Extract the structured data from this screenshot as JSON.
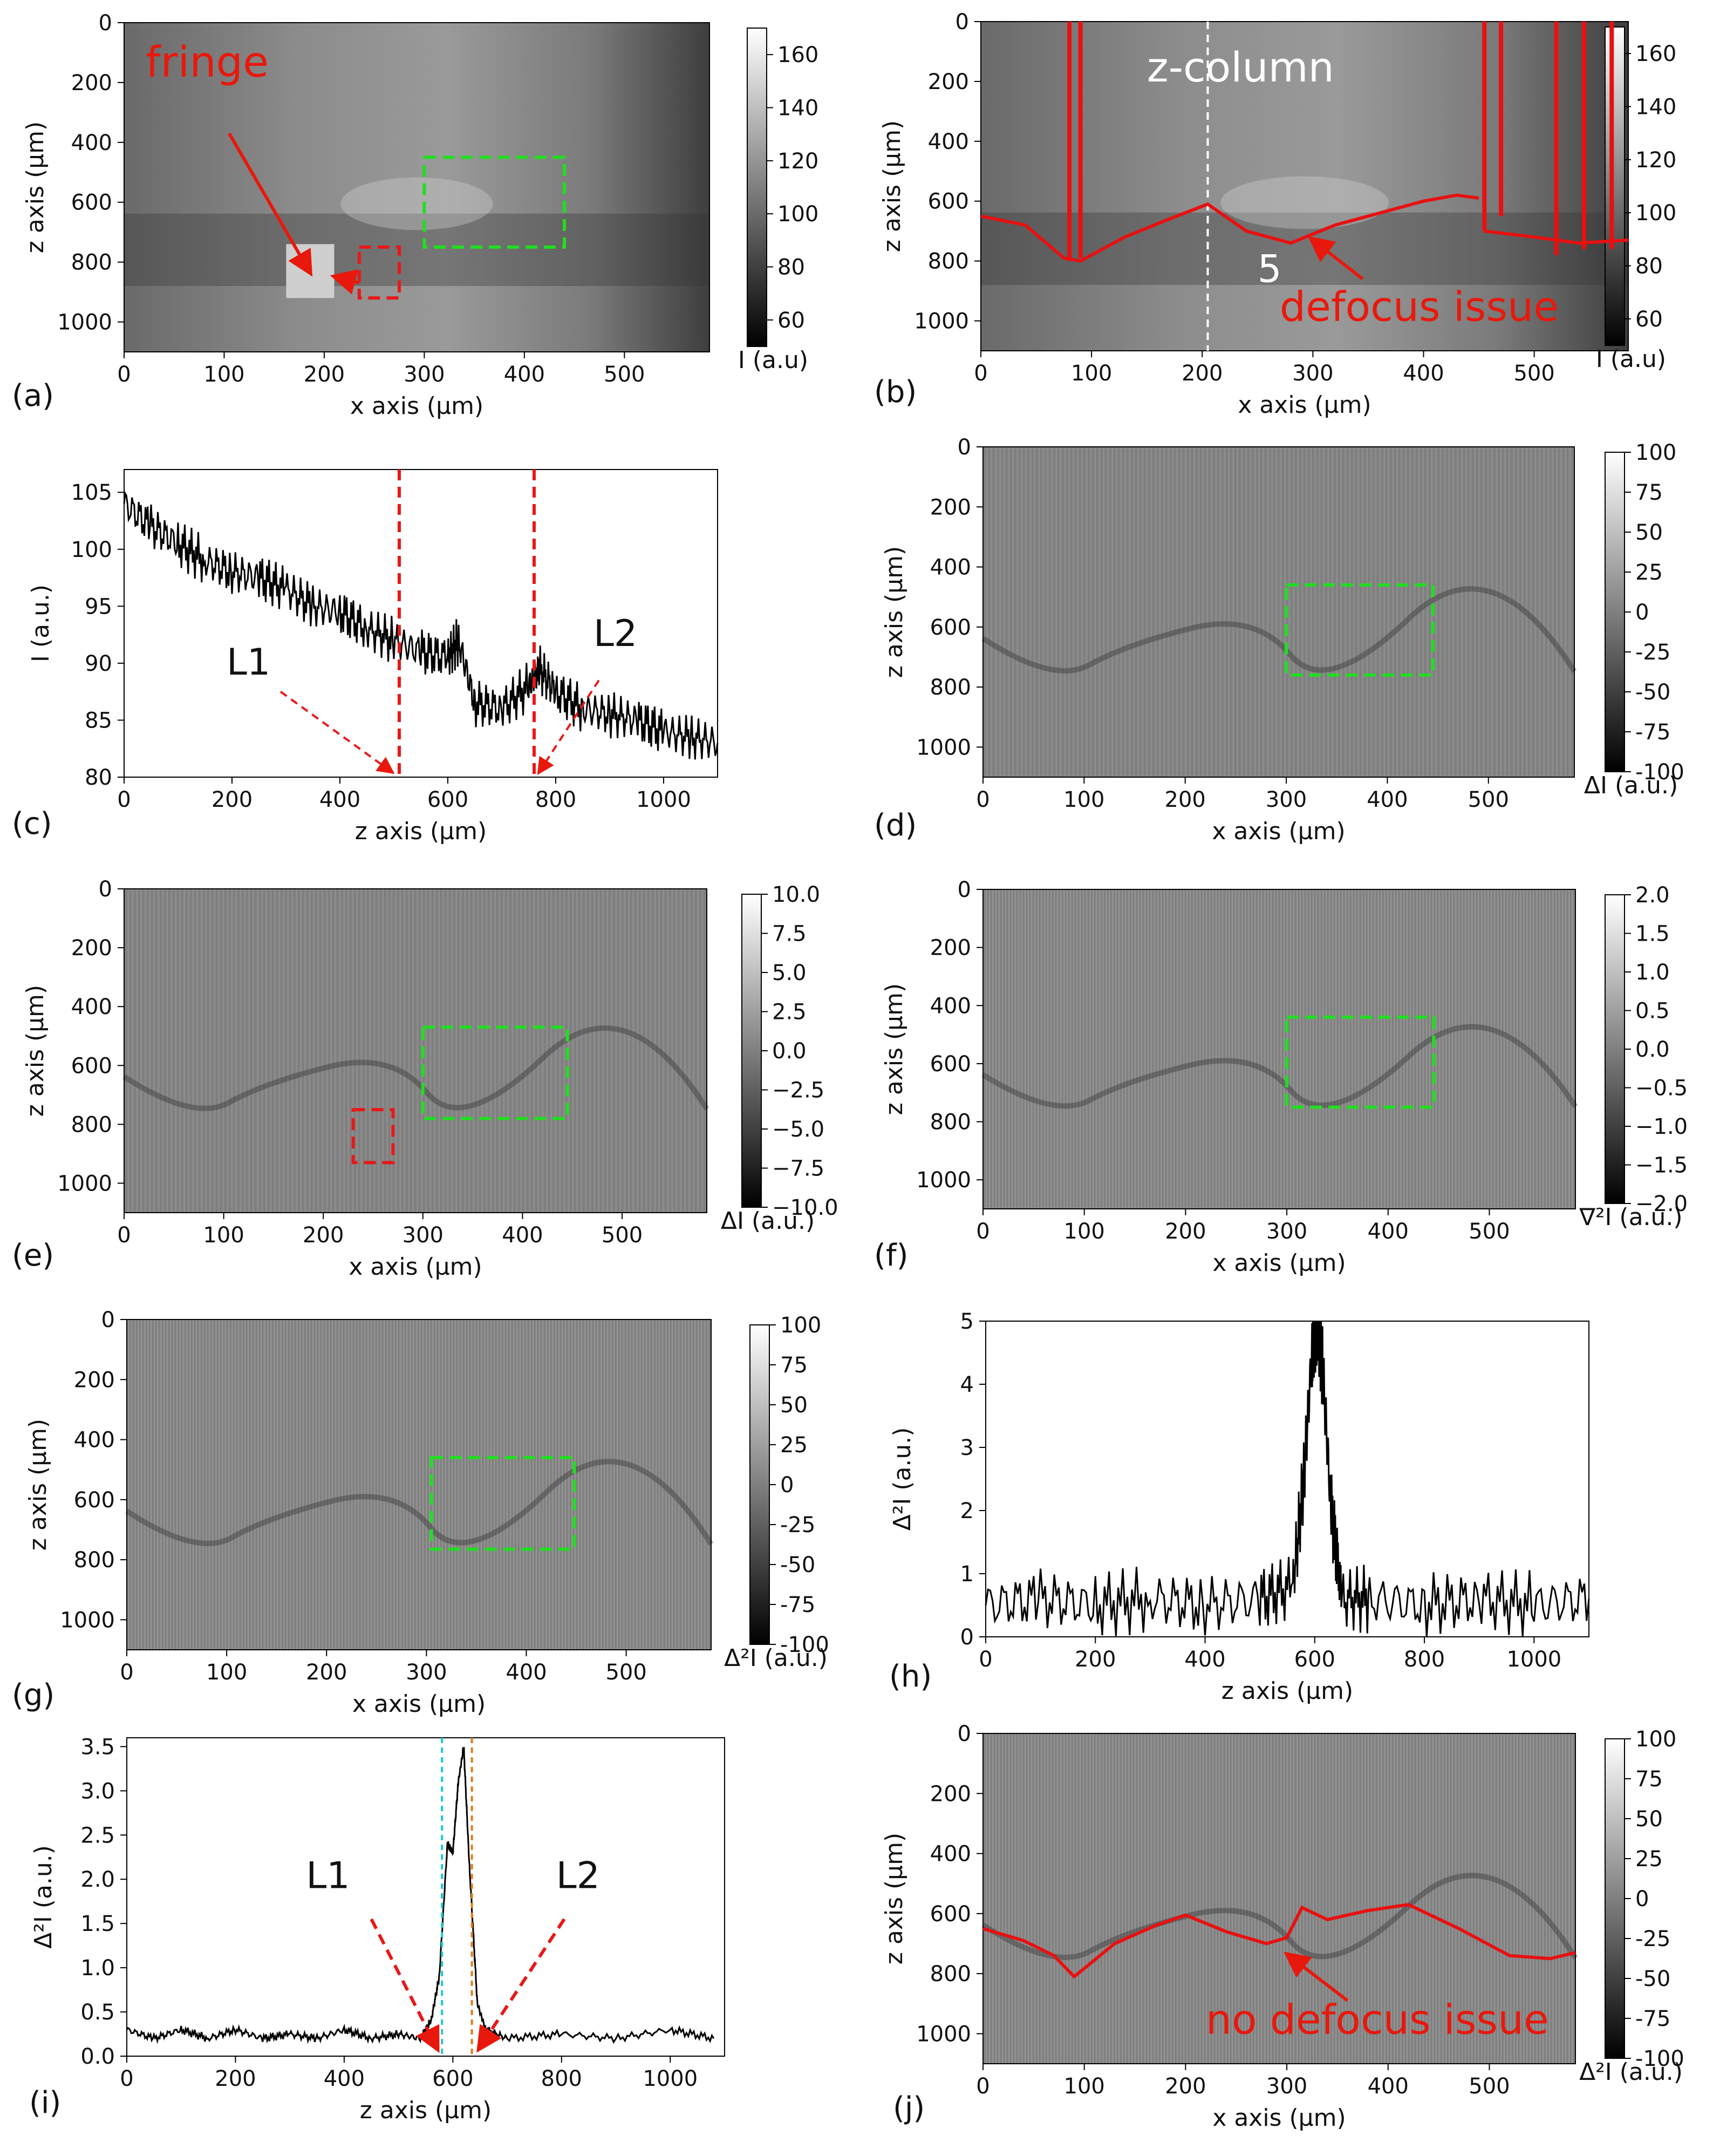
{
  "figure": {
    "panels": [
      {
        "id": "a",
        "label": "(a)",
        "type": "heatmap",
        "xlabel": "x axis (μm)",
        "ylabel": "z axis (μm)",
        "xticks": [
          0,
          100,
          200,
          300,
          400,
          500
        ],
        "yticks": [
          0,
          200,
          400,
          600,
          800,
          1000
        ],
        "colorbar": {
          "label": "I (a.u)",
          "ticks": [
            60,
            80,
            100,
            120,
            140,
            160
          ],
          "min": 50,
          "max": 170
        },
        "annotations": [
          {
            "text": "fringe",
            "color": "#e8180c"
          }
        ],
        "boxes": [
          {
            "color": "#22dd22",
            "x": [
              300,
              440
            ],
            "z": [
              450,
              750
            ]
          },
          {
            "color": "#e81818",
            "x": [
              235,
              275
            ],
            "z": [
              750,
              920
            ]
          }
        ]
      },
      {
        "id": "b",
        "label": "(b)",
        "type": "heatmap",
        "xlabel": "x axis (μm)",
        "ylabel": "z axis (μm)",
        "xticks": [
          0,
          100,
          200,
          300,
          400,
          500
        ],
        "yticks": [
          0,
          200,
          400,
          600,
          800,
          1000
        ],
        "colorbar": {
          "label": "I (a.u)",
          "ticks": [
            60,
            80,
            100,
            120,
            140,
            160
          ],
          "min": 50,
          "max": 170
        },
        "annotations": [
          {
            "text": "z-column",
            "color": "#ffffff"
          },
          {
            "text": "5",
            "color": "#ffffff"
          },
          {
            "text": "defocus issue",
            "color": "#e8180c"
          }
        ],
        "vline_x": 205
      },
      {
        "id": "c",
        "label": "(c)",
        "type": "line",
        "xlabel": "z axis (μm)",
        "ylabel": "I (a.u.)",
        "xticks": [
          0,
          200,
          400,
          600,
          800,
          1000
        ],
        "yticks": [
          80,
          85,
          90,
          95,
          100,
          105
        ],
        "xlim": [
          0,
          1100
        ],
        "ylim": [
          80,
          107
        ],
        "vlines": [
          510,
          760
        ],
        "annotations": [
          {
            "text": "L1"
          },
          {
            "text": "L2"
          }
        ],
        "chart_data": {
          "type": "line",
          "x": [
            0,
            50,
            100,
            150,
            200,
            250,
            300,
            350,
            400,
            450,
            500,
            550,
            600,
            620,
            650,
            700,
            750,
            770,
            800,
            850,
            900,
            950,
            1000,
            1050,
            1100
          ],
          "y": [
            104,
            102,
            100.5,
            99,
            98,
            97.5,
            96.5,
            95,
            94.5,
            93,
            92,
            91,
            90.5,
            92,
            86.5,
            86,
            88,
            89.5,
            87.5,
            86,
            85.5,
            85,
            84,
            83.5,
            83
          ]
        }
      },
      {
        "id": "d",
        "label": "(d)",
        "type": "heatmap",
        "xlabel": "x axis (μm)",
        "ylabel": "z axis (μm)",
        "xticks": [
          0,
          100,
          200,
          300,
          400,
          500
        ],
        "yticks": [
          0,
          200,
          400,
          600,
          800,
          1000
        ],
        "colorbar": {
          "label": "ΔI (a.u.)",
          "ticks": [
            100,
            75,
            50,
            25,
            0,
            -25,
            -50,
            -75,
            -100
          ],
          "min": -100,
          "max": 100
        }
      },
      {
        "id": "e",
        "label": "(e)",
        "type": "heatmap",
        "xlabel": "x axis (μm)",
        "ylabel": "z axis (μm)",
        "xticks": [
          0,
          100,
          200,
          300,
          400,
          500
        ],
        "yticks": [
          0,
          200,
          400,
          600,
          800,
          1000
        ],
        "colorbar": {
          "label": "ΔI (a.u.)",
          "ticks": [
            "10.0",
            "7.5",
            "5.0",
            "2.5",
            "0.0",
            "−2.5",
            "−5.0",
            "−7.5",
            "−10.0"
          ],
          "min": -10,
          "max": 10
        }
      },
      {
        "id": "f",
        "label": "(f)",
        "type": "heatmap",
        "xlabel": "x axis (μm)",
        "ylabel": "z axis (μm)",
        "xticks": [
          0,
          100,
          200,
          300,
          400,
          500
        ],
        "yticks": [
          0,
          200,
          400,
          600,
          800,
          1000
        ],
        "colorbar": {
          "label": "∇²I (a.u.)",
          "ticks": [
            "2.0",
            "1.5",
            "1.0",
            "0.5",
            "0.0",
            "−0.5",
            "−1.0",
            "−1.5",
            "−2.0"
          ],
          "min": -2,
          "max": 2
        }
      },
      {
        "id": "g",
        "label": "(g)",
        "type": "heatmap",
        "xlabel": "x axis (μm)",
        "ylabel": "z axis (μm)",
        "xticks": [
          0,
          100,
          200,
          300,
          400,
          500
        ],
        "yticks": [
          0,
          200,
          400,
          600,
          800,
          1000
        ],
        "colorbar": {
          "label": "Δ²I (a.u.)",
          "ticks": [
            100,
            75,
            50,
            25,
            0,
            -25,
            -50,
            -75,
            -100
          ],
          "min": -100,
          "max": 100
        }
      },
      {
        "id": "h",
        "label": "(h)",
        "type": "line",
        "xlabel": "z axis (μm)",
        "ylabel": "Δ²I (a.u.)",
        "xticks": [
          0,
          200,
          400,
          600,
          800,
          1000
        ],
        "yticks": [
          0,
          1,
          2,
          3,
          4,
          5
        ],
        "xlim": [
          0,
          1100
        ],
        "ylim": [
          0,
          5
        ],
        "chart_data": {
          "type": "line",
          "x": [
            0,
            100,
            200,
            300,
            400,
            500,
            560,
            580,
            595,
            605,
            615,
            630,
            650,
            700,
            800,
            900,
            1000,
            1100
          ],
          "y": [
            0.5,
            0.6,
            0.5,
            0.6,
            0.5,
            0.6,
            0.8,
            2.5,
            4.5,
            4.9,
            4.2,
            2.0,
            0.6,
            0.6,
            0.5,
            0.6,
            0.5,
            0.6
          ]
        }
      },
      {
        "id": "i",
        "label": "(i)",
        "type": "line",
        "xlabel": "z axis (μm)",
        "ylabel": "Δ²I (a.u.)",
        "xticks": [
          0,
          200,
          400,
          600,
          800,
          1000
        ],
        "yticks": [
          "0.0",
          "0.5",
          "1.0",
          "1.5",
          "2.0",
          "2.5",
          "3.0",
          "3.5"
        ],
        "xlim": [
          0,
          1100
        ],
        "ylim": [
          0,
          3.6
        ],
        "vlines_colored": [
          {
            "x": 580,
            "color": "#1fc8c8"
          },
          {
            "x": 635,
            "color": "#e07b1a"
          }
        ],
        "annotations": [
          {
            "text": "L1"
          },
          {
            "text": "L2"
          }
        ],
        "chart_data": {
          "type": "line",
          "x": [
            0,
            50,
            100,
            150,
            200,
            250,
            300,
            350,
            400,
            450,
            500,
            540,
            560,
            575,
            590,
            600,
            610,
            620,
            630,
            645,
            660,
            700,
            800,
            900,
            1000,
            1080
          ],
          "y": [
            0.3,
            0.2,
            0.3,
            0.2,
            0.3,
            0.2,
            0.25,
            0.2,
            0.3,
            0.2,
            0.25,
            0.2,
            0.4,
            0.9,
            2.4,
            2.3,
            3.1,
            3.5,
            2.2,
            0.6,
            0.3,
            0.2,
            0.25,
            0.2,
            0.3,
            0.2
          ]
        }
      },
      {
        "id": "j",
        "label": "(j)",
        "type": "heatmap",
        "xlabel": "x axis (μm)",
        "ylabel": "z axis (μm)",
        "xticks": [
          0,
          100,
          200,
          300,
          400,
          500
        ],
        "yticks": [
          0,
          200,
          400,
          600,
          800,
          1000
        ],
        "colorbar": {
          "label": "Δ²I (a.u.)",
          "ticks": [
            100,
            75,
            50,
            25,
            0,
            -25,
            -50,
            -75,
            -100
          ],
          "min": -100,
          "max": 100
        },
        "annotations": [
          {
            "text": "no defocus issue",
            "color": "#e8180c"
          }
        ]
      }
    ]
  },
  "chart_data": [
    {
      "type": "line",
      "panel": "c",
      "x": [
        0,
        50,
        100,
        150,
        200,
        250,
        300,
        350,
        400,
        450,
        500,
        550,
        600,
        620,
        650,
        700,
        750,
        770,
        800,
        850,
        900,
        950,
        1000,
        1050,
        1100
      ],
      "y": [
        104,
        102,
        100.5,
        99,
        98,
        97.5,
        96.5,
        95,
        94.5,
        93,
        92,
        91,
        90.5,
        92,
        86.5,
        86,
        88,
        89.5,
        87.5,
        86,
        85.5,
        85,
        84,
        83.5,
        83
      ],
      "xlabel": "z axis (μm)",
      "ylabel": "I (a.u.)",
      "ylim": [
        80,
        107
      ]
    },
    {
      "type": "line",
      "panel": "h",
      "x": [
        0,
        100,
        200,
        300,
        400,
        500,
        560,
        580,
        595,
        605,
        615,
        630,
        650,
        700,
        800,
        900,
        1000,
        1100
      ],
      "y": [
        0.5,
        0.6,
        0.5,
        0.6,
        0.5,
        0.6,
        0.8,
        2.5,
        4.5,
        4.9,
        4.2,
        2.0,
        0.6,
        0.6,
        0.5,
        0.6,
        0.5,
        0.6
      ],
      "xlabel": "z axis (μm)",
      "ylabel": "Δ²I (a.u.)",
      "ylim": [
        0,
        5
      ]
    },
    {
      "type": "line",
      "panel": "i",
      "x": [
        0,
        50,
        100,
        150,
        200,
        250,
        300,
        350,
        400,
        450,
        500,
        540,
        560,
        575,
        590,
        600,
        610,
        620,
        630,
        645,
        660,
        700,
        800,
        900,
        1000,
        1080
      ],
      "y": [
        0.3,
        0.2,
        0.3,
        0.2,
        0.3,
        0.2,
        0.25,
        0.2,
        0.3,
        0.2,
        0.25,
        0.2,
        0.4,
        0.9,
        2.4,
        2.3,
        3.1,
        3.5,
        2.2,
        0.6,
        0.3,
        0.2,
        0.25,
        0.2,
        0.3,
        0.2
      ],
      "xlabel": "z axis (μm)",
      "ylabel": "Δ²I (a.u.)",
      "ylim": [
        0,
        3.6
      ]
    }
  ]
}
